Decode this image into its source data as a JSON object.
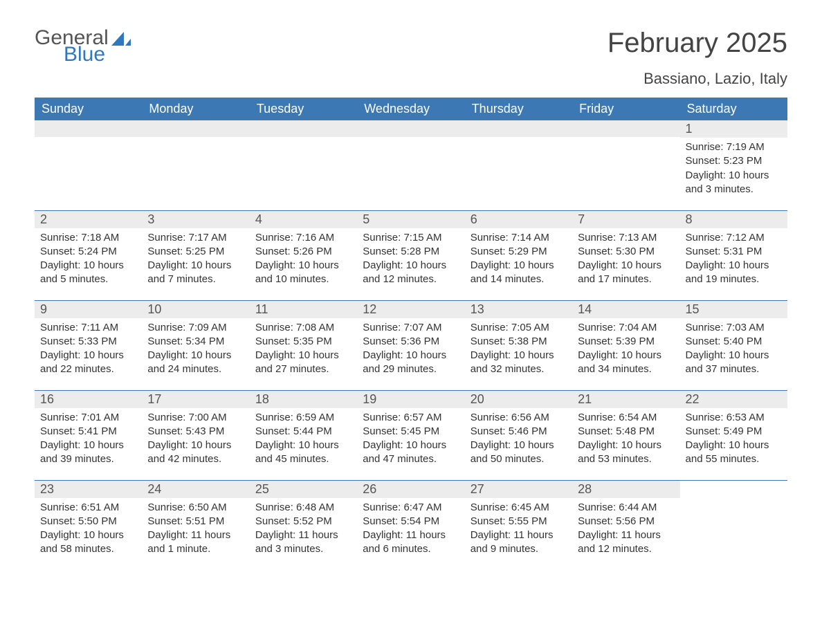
{
  "brand": {
    "word1": "General",
    "word2": "Blue",
    "accent_color": "#2f78bf"
  },
  "title": "February 2025",
  "location": "Bassiano, Lazio, Italy",
  "header_bg": "#3c78b4",
  "header_fg": "#ffffff",
  "band_bg": "#ececec",
  "rule_color": "#3c78b4",
  "text_color": "#333333",
  "weekdays": [
    "Sunday",
    "Monday",
    "Tuesday",
    "Wednesday",
    "Thursday",
    "Friday",
    "Saturday"
  ],
  "weeks": [
    [
      null,
      null,
      null,
      null,
      null,
      null,
      {
        "n": "1",
        "sunrise": "Sunrise: 7:19 AM",
        "sunset": "Sunset: 5:23 PM",
        "daylight": "Daylight: 10 hours and 3 minutes."
      }
    ],
    [
      {
        "n": "2",
        "sunrise": "Sunrise: 7:18 AM",
        "sunset": "Sunset: 5:24 PM",
        "daylight": "Daylight: 10 hours and 5 minutes."
      },
      {
        "n": "3",
        "sunrise": "Sunrise: 7:17 AM",
        "sunset": "Sunset: 5:25 PM",
        "daylight": "Daylight: 10 hours and 7 minutes."
      },
      {
        "n": "4",
        "sunrise": "Sunrise: 7:16 AM",
        "sunset": "Sunset: 5:26 PM",
        "daylight": "Daylight: 10 hours and 10 minutes."
      },
      {
        "n": "5",
        "sunrise": "Sunrise: 7:15 AM",
        "sunset": "Sunset: 5:28 PM",
        "daylight": "Daylight: 10 hours and 12 minutes."
      },
      {
        "n": "6",
        "sunrise": "Sunrise: 7:14 AM",
        "sunset": "Sunset: 5:29 PM",
        "daylight": "Daylight: 10 hours and 14 minutes."
      },
      {
        "n": "7",
        "sunrise": "Sunrise: 7:13 AM",
        "sunset": "Sunset: 5:30 PM",
        "daylight": "Daylight: 10 hours and 17 minutes."
      },
      {
        "n": "8",
        "sunrise": "Sunrise: 7:12 AM",
        "sunset": "Sunset: 5:31 PM",
        "daylight": "Daylight: 10 hours and 19 minutes."
      }
    ],
    [
      {
        "n": "9",
        "sunrise": "Sunrise: 7:11 AM",
        "sunset": "Sunset: 5:33 PM",
        "daylight": "Daylight: 10 hours and 22 minutes."
      },
      {
        "n": "10",
        "sunrise": "Sunrise: 7:09 AM",
        "sunset": "Sunset: 5:34 PM",
        "daylight": "Daylight: 10 hours and 24 minutes."
      },
      {
        "n": "11",
        "sunrise": "Sunrise: 7:08 AM",
        "sunset": "Sunset: 5:35 PM",
        "daylight": "Daylight: 10 hours and 27 minutes."
      },
      {
        "n": "12",
        "sunrise": "Sunrise: 7:07 AM",
        "sunset": "Sunset: 5:36 PM",
        "daylight": "Daylight: 10 hours and 29 minutes."
      },
      {
        "n": "13",
        "sunrise": "Sunrise: 7:05 AM",
        "sunset": "Sunset: 5:38 PM",
        "daylight": "Daylight: 10 hours and 32 minutes."
      },
      {
        "n": "14",
        "sunrise": "Sunrise: 7:04 AM",
        "sunset": "Sunset: 5:39 PM",
        "daylight": "Daylight: 10 hours and 34 minutes."
      },
      {
        "n": "15",
        "sunrise": "Sunrise: 7:03 AM",
        "sunset": "Sunset: 5:40 PM",
        "daylight": "Daylight: 10 hours and 37 minutes."
      }
    ],
    [
      {
        "n": "16",
        "sunrise": "Sunrise: 7:01 AM",
        "sunset": "Sunset: 5:41 PM",
        "daylight": "Daylight: 10 hours and 39 minutes."
      },
      {
        "n": "17",
        "sunrise": "Sunrise: 7:00 AM",
        "sunset": "Sunset: 5:43 PM",
        "daylight": "Daylight: 10 hours and 42 minutes."
      },
      {
        "n": "18",
        "sunrise": "Sunrise: 6:59 AM",
        "sunset": "Sunset: 5:44 PM",
        "daylight": "Daylight: 10 hours and 45 minutes."
      },
      {
        "n": "19",
        "sunrise": "Sunrise: 6:57 AM",
        "sunset": "Sunset: 5:45 PM",
        "daylight": "Daylight: 10 hours and 47 minutes."
      },
      {
        "n": "20",
        "sunrise": "Sunrise: 6:56 AM",
        "sunset": "Sunset: 5:46 PM",
        "daylight": "Daylight: 10 hours and 50 minutes."
      },
      {
        "n": "21",
        "sunrise": "Sunrise: 6:54 AM",
        "sunset": "Sunset: 5:48 PM",
        "daylight": "Daylight: 10 hours and 53 minutes."
      },
      {
        "n": "22",
        "sunrise": "Sunrise: 6:53 AM",
        "sunset": "Sunset: 5:49 PM",
        "daylight": "Daylight: 10 hours and 55 minutes."
      }
    ],
    [
      {
        "n": "23",
        "sunrise": "Sunrise: 6:51 AM",
        "sunset": "Sunset: 5:50 PM",
        "daylight": "Daylight: 10 hours and 58 minutes."
      },
      {
        "n": "24",
        "sunrise": "Sunrise: 6:50 AM",
        "sunset": "Sunset: 5:51 PM",
        "daylight": "Daylight: 11 hours and 1 minute."
      },
      {
        "n": "25",
        "sunrise": "Sunrise: 6:48 AM",
        "sunset": "Sunset: 5:52 PM",
        "daylight": "Daylight: 11 hours and 3 minutes."
      },
      {
        "n": "26",
        "sunrise": "Sunrise: 6:47 AM",
        "sunset": "Sunset: 5:54 PM",
        "daylight": "Daylight: 11 hours and 6 minutes."
      },
      {
        "n": "27",
        "sunrise": "Sunrise: 6:45 AM",
        "sunset": "Sunset: 5:55 PM",
        "daylight": "Daylight: 11 hours and 9 minutes."
      },
      {
        "n": "28",
        "sunrise": "Sunrise: 6:44 AM",
        "sunset": "Sunset: 5:56 PM",
        "daylight": "Daylight: 11 hours and 12 minutes."
      },
      null
    ]
  ]
}
